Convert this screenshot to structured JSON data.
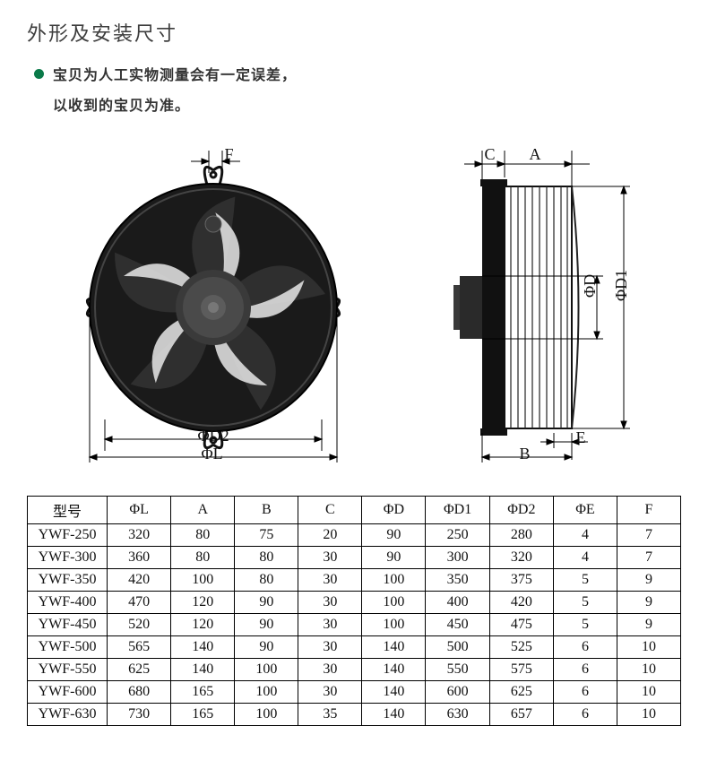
{
  "title": "外形及安装尺寸",
  "note_line1": "宝贝为人工实物测量会有一定误差，",
  "note_line2": "以收到的宝贝为准。",
  "labels": {
    "F": "F",
    "phiD2": "ΦD2",
    "phiL": "ΦL",
    "C": "C",
    "A": "A",
    "phiD": "ΦD",
    "phiD1": "ΦD1",
    "E": "E",
    "B": "B"
  },
  "table": {
    "columns": [
      "型号",
      "ΦL",
      "A",
      "B",
      "C",
      "ΦD",
      "ΦD1",
      "ΦD2",
      "ΦE",
      "F"
    ],
    "rows": [
      [
        "YWF-250",
        "320",
        "80",
        "75",
        "20",
        "90",
        "250",
        "280",
        "4",
        "7"
      ],
      [
        "YWF-300",
        "360",
        "80",
        "80",
        "30",
        "90",
        "300",
        "320",
        "4",
        "7"
      ],
      [
        "YWF-350",
        "420",
        "100",
        "80",
        "30",
        "100",
        "350",
        "375",
        "5",
        "9"
      ],
      [
        "YWF-400",
        "470",
        "120",
        "90",
        "30",
        "100",
        "400",
        "420",
        "5",
        "9"
      ],
      [
        "YWF-450",
        "520",
        "120",
        "90",
        "30",
        "100",
        "450",
        "475",
        "5",
        "9"
      ],
      [
        "YWF-500",
        "565",
        "140",
        "90",
        "30",
        "140",
        "500",
        "525",
        "6",
        "10"
      ],
      [
        "YWF-550",
        "625",
        "140",
        "100",
        "30",
        "140",
        "550",
        "575",
        "6",
        "10"
      ],
      [
        "YWF-600",
        "680",
        "165",
        "100",
        "30",
        "140",
        "600",
        "625",
        "6",
        "10"
      ],
      [
        "YWF-630",
        "730",
        "165",
        "100",
        "35",
        "140",
        "630",
        "657",
        "6",
        "10"
      ]
    ]
  },
  "styling": {
    "page_bg": "#ffffff",
    "text_color": "#333333",
    "bullet_color": "#0a7a49",
    "table_border": "#000000",
    "fan_dark": "#1a1a1a",
    "fan_mid": "#2b2b2b",
    "hub": "#555555",
    "guard_stroke": "#222222"
  }
}
